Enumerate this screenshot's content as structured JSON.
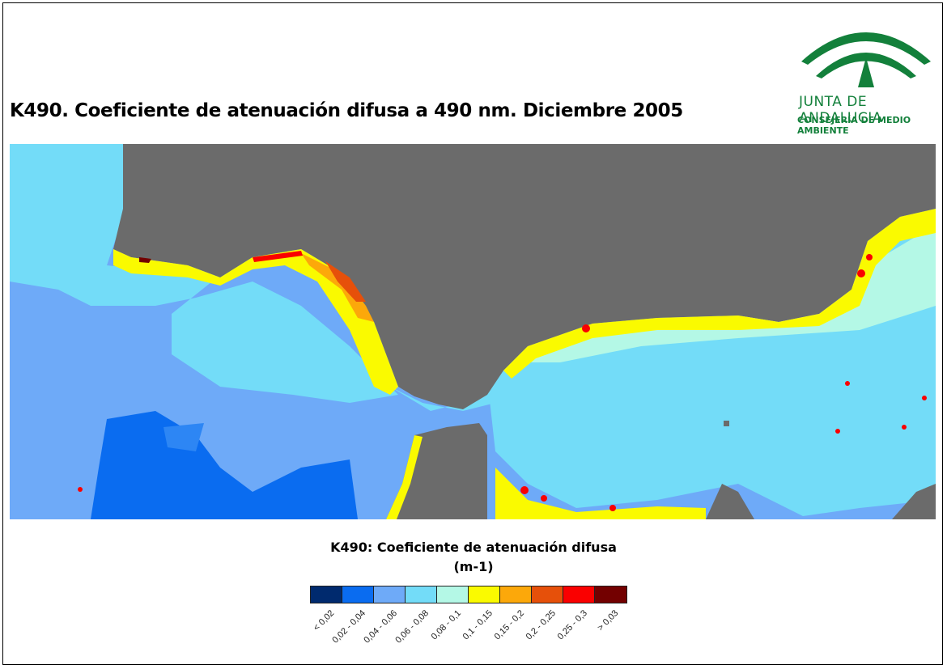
{
  "title": "K490. Coeficiente de atenuación difusa a 490 nm. Diciembre 2005",
  "logo": {
    "name": "JUNTA DE ANDALUCIA",
    "subtitle": "CONSEJERÍA DE MEDIO AMBIENTE",
    "color": "#13803b"
  },
  "legend": {
    "title": "K490: Coeficiente de atenuación difusa",
    "unit": "(m-1)",
    "classes": [
      {
        "label": "< 0,02",
        "color": "#002a6e"
      },
      {
        "label": "0,02 - 0,04",
        "color": "#0a6cf0"
      },
      {
        "label": "0,04 - 0,06",
        "color": "#6eaaf8"
      },
      {
        "label": "0,06 - 0,08",
        "color": "#73dcf8"
      },
      {
        "label": "0,08 - 0,1",
        "color": "#b4f8e6"
      },
      {
        "label": "0,1 - 0,15",
        "color": "#fafa00"
      },
      {
        "label": "0,15 - 0,2",
        "color": "#fca80a"
      },
      {
        "label": "0,2 - 0,25",
        "color": "#e6500a"
      },
      {
        "label": "0,25 - 0,3",
        "color": "#fa0000"
      },
      {
        "label": "> 0,03",
        "color": "#730000"
      }
    ]
  },
  "map": {
    "land_color": "#6b6b6b"
  }
}
